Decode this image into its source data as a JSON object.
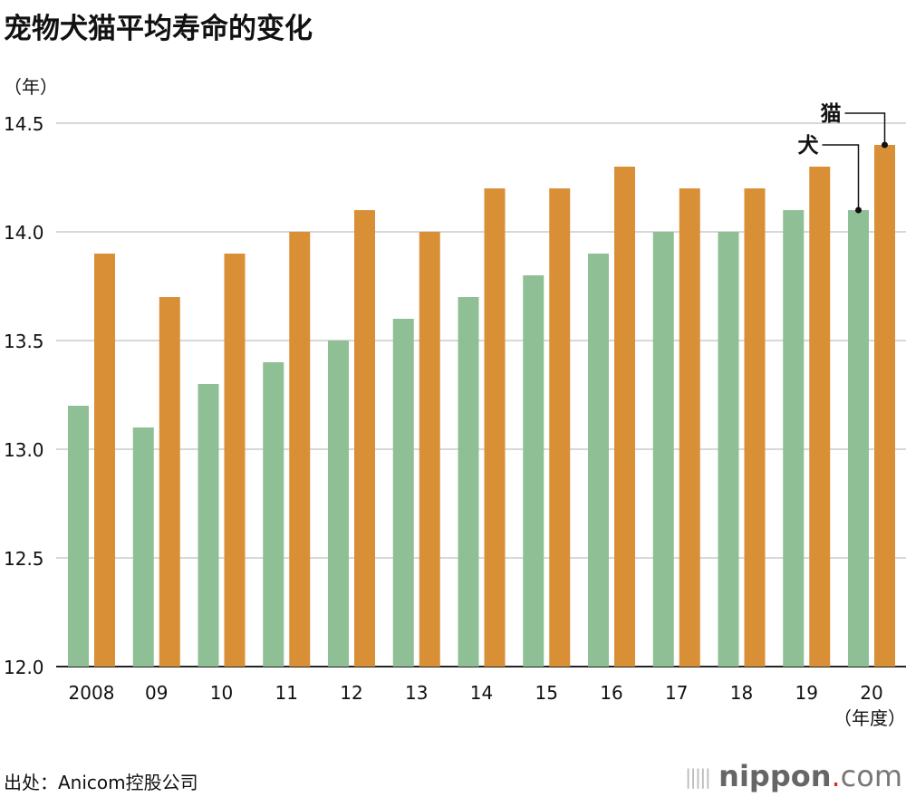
{
  "title": "宠物犬猫平均寿命的变化",
  "unit_label": "（年）",
  "source": "出处：Anicom控股公司",
  "logo": {
    "main": "nippon",
    "dot": ".",
    "suffix": "com"
  },
  "chart_data": {
    "type": "bar",
    "title": "宠物犬猫平均寿命的变化",
    "ylabel": "（年）",
    "xlabel": "（年度）",
    "categories": [
      "2008",
      "09",
      "10",
      "11",
      "12",
      "13",
      "14",
      "15",
      "16",
      "17",
      "18",
      "19",
      "20"
    ],
    "series": [
      {
        "name": "犬",
        "color": "#8fbf95",
        "values": [
          13.2,
          13.1,
          13.3,
          13.4,
          13.5,
          13.6,
          13.7,
          13.8,
          13.9,
          14.0,
          14.0,
          14.1,
          14.1
        ]
      },
      {
        "name": "猫",
        "color": "#d98f35",
        "values": [
          13.9,
          13.7,
          13.9,
          14.0,
          14.1,
          14.0,
          14.2,
          14.2,
          14.3,
          14.2,
          14.2,
          14.3,
          14.4
        ]
      }
    ],
    "ylim": [
      12.0,
      14.5
    ],
    "yticks": [
      "12.0",
      "12.5",
      "13.0",
      "13.5",
      "14.0",
      "14.5"
    ],
    "grid": true,
    "legend": "direct labels on last bars, top-right"
  }
}
